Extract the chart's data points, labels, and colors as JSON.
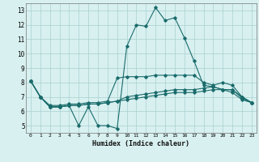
{
  "title": "",
  "xlabel": "Humidex (Indice chaleur)",
  "xlim": [
    -0.5,
    23.5
  ],
  "ylim": [
    4.5,
    13.5
  ],
  "yticks": [
    5,
    6,
    7,
    8,
    9,
    10,
    11,
    12,
    13
  ],
  "xticks": [
    0,
    1,
    2,
    3,
    4,
    5,
    6,
    7,
    8,
    9,
    10,
    11,
    12,
    13,
    14,
    15,
    16,
    17,
    18,
    19,
    20,
    21,
    22,
    23
  ],
  "bg_color": "#d8f0f0",
  "grid_color": "#aacfcf",
  "line_color": "#1a6b6b",
  "series": [
    {
      "x": [
        0,
        1,
        2,
        3,
        4,
        5,
        6,
        7,
        8,
        9,
        10,
        11,
        12,
        13,
        14,
        15,
        16,
        17,
        18,
        19,
        20,
        21,
        22,
        23
      ],
      "y": [
        8.1,
        7.0,
        6.3,
        6.3,
        6.4,
        5.0,
        6.3,
        5.0,
        5.0,
        4.8,
        10.5,
        12.0,
        11.9,
        13.2,
        12.3,
        12.5,
        11.1,
        9.5,
        7.8,
        7.7,
        7.5,
        7.5,
        6.9,
        6.6
      ]
    },
    {
      "x": [
        0,
        1,
        2,
        3,
        4,
        5,
        6,
        7,
        8,
        9,
        10,
        11,
        12,
        13,
        14,
        15,
        16,
        17,
        18,
        19,
        20,
        21,
        22,
        23
      ],
      "y": [
        8.1,
        7.0,
        6.4,
        6.4,
        6.5,
        6.5,
        6.6,
        6.6,
        6.7,
        8.3,
        8.4,
        8.4,
        8.4,
        8.5,
        8.5,
        8.5,
        8.5,
        8.5,
        8.0,
        7.8,
        8.0,
        7.8,
        7.0,
        6.6
      ]
    },
    {
      "x": [
        0,
        1,
        2,
        3,
        4,
        5,
        6,
        7,
        8,
        9,
        10,
        11,
        12,
        13,
        14,
        15,
        16,
        17,
        18,
        19,
        20,
        21,
        22,
        23
      ],
      "y": [
        8.1,
        7.0,
        6.3,
        6.3,
        6.4,
        6.4,
        6.5,
        6.5,
        6.6,
        6.7,
        7.0,
        7.1,
        7.2,
        7.3,
        7.4,
        7.5,
        7.5,
        7.5,
        7.6,
        7.7,
        7.5,
        7.5,
        7.0,
        6.6
      ]
    },
    {
      "x": [
        0,
        1,
        2,
        3,
        4,
        5,
        6,
        7,
        8,
        9,
        10,
        11,
        12,
        13,
        14,
        15,
        16,
        17,
        18,
        19,
        20,
        21,
        22,
        23
      ],
      "y": [
        8.1,
        7.0,
        6.3,
        6.3,
        6.4,
        6.4,
        6.5,
        6.5,
        6.6,
        6.7,
        6.8,
        6.9,
        7.0,
        7.1,
        7.2,
        7.3,
        7.3,
        7.3,
        7.4,
        7.5,
        7.5,
        7.3,
        6.8,
        6.6
      ]
    }
  ]
}
